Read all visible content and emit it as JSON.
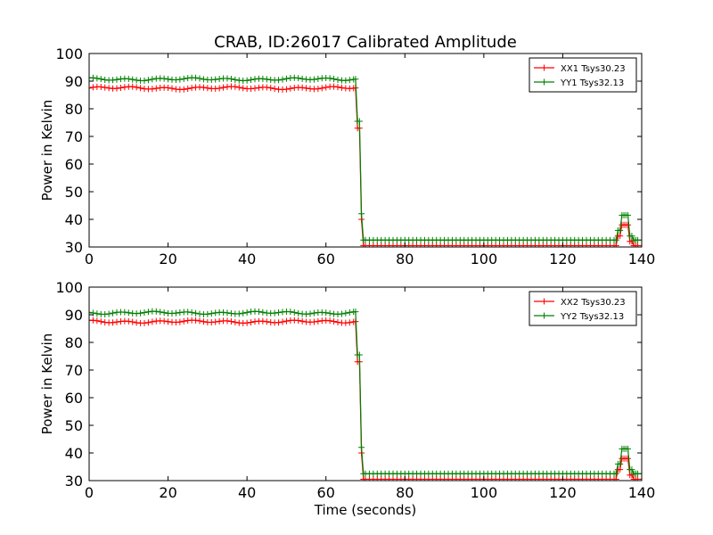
{
  "figure": {
    "title": "CRAB, ID:26017 Calibrated Amplitude"
  },
  "colors": {
    "series_a": "#ff0000",
    "series_b": "#008000",
    "axes": "#000000",
    "background": "#ffffff"
  },
  "chart_data": [
    {
      "type": "line",
      "title": "CRAB, ID:26017 Calibrated Amplitude",
      "xlabel": "",
      "ylabel": "Power in Kelvin",
      "xlim": [
        0,
        140
      ],
      "ylim": [
        30,
        100
      ],
      "xticks": [
        "0",
        "20",
        "40",
        "60",
        "80",
        "100",
        "120",
        "140"
      ],
      "yticks": [
        "30",
        "40",
        "50",
        "60",
        "70",
        "80",
        "90",
        "100"
      ],
      "grid": false,
      "legend_position": "top-right",
      "marker": "+",
      "series": [
        {
          "name": "XX1 Tsys30.23",
          "color": "#ff0000",
          "segments": [
            {
              "x_start": 0,
              "x_end": 68,
              "level": 87.5
            },
            {
              "x_start": 68,
              "x_end": 69,
              "level": 73.0
            },
            {
              "x_start": 69,
              "x_end": 69.5,
              "level": 40.0
            },
            {
              "x_start": 69.5,
              "x_end": 134,
              "level": 30.5
            },
            {
              "x_start": 134,
              "x_end": 135,
              "level": 34.0
            },
            {
              "x_start": 135,
              "x_end": 137,
              "level": 38.0
            },
            {
              "x_start": 137,
              "x_end": 138,
              "level": 32.0
            },
            {
              "x_start": 138,
              "x_end": 140,
              "level": 30.5
            }
          ]
        },
        {
          "name": "YY1 Tsys32.13",
          "color": "#008000",
          "segments": [
            {
              "x_start": 0,
              "x_end": 68,
              "level": 90.7
            },
            {
              "x_start": 68,
              "x_end": 69,
              "level": 75.5
            },
            {
              "x_start": 69,
              "x_end": 69.5,
              "level": 42.0
            },
            {
              "x_start": 69.5,
              "x_end": 134,
              "level": 32.5
            },
            {
              "x_start": 134,
              "x_end": 135,
              "level": 36.0
            },
            {
              "x_start": 135,
              "x_end": 137,
              "level": 41.5
            },
            {
              "x_start": 137,
              "x_end": 138,
              "level": 34.0
            },
            {
              "x_start": 138,
              "x_end": 140,
              "level": 32.5
            }
          ]
        }
      ]
    },
    {
      "type": "line",
      "title": "",
      "xlabel": "Time (seconds)",
      "ylabel": "Power in Kelvin",
      "xlim": [
        0,
        140
      ],
      "ylim": [
        30,
        100
      ],
      "xticks": [
        "0",
        "20",
        "40",
        "60",
        "80",
        "100",
        "120",
        "140"
      ],
      "yticks": [
        "30",
        "40",
        "50",
        "60",
        "70",
        "80",
        "90",
        "100"
      ],
      "grid": false,
      "legend_position": "top-right",
      "marker": "+",
      "series": [
        {
          "name": "XX2 Tsys30.23",
          "color": "#ff0000",
          "segments": [
            {
              "x_start": 0,
              "x_end": 68,
              "level": 87.5
            },
            {
              "x_start": 68,
              "x_end": 69,
              "level": 73.0
            },
            {
              "x_start": 69,
              "x_end": 69.5,
              "level": 40.0
            },
            {
              "x_start": 69.5,
              "x_end": 134,
              "level": 30.5
            },
            {
              "x_start": 134,
              "x_end": 135,
              "level": 34.0
            },
            {
              "x_start": 135,
              "x_end": 137,
              "level": 38.0
            },
            {
              "x_start": 137,
              "x_end": 138,
              "level": 32.0
            },
            {
              "x_start": 138,
              "x_end": 140,
              "level": 30.5
            }
          ]
        },
        {
          "name": "YY2 Tsys32.13",
          "color": "#008000",
          "segments": [
            {
              "x_start": 0,
              "x_end": 68,
              "level": 90.7
            },
            {
              "x_start": 68,
              "x_end": 69,
              "level": 75.5
            },
            {
              "x_start": 69,
              "x_end": 69.5,
              "level": 42.0
            },
            {
              "x_start": 69.5,
              "x_end": 134,
              "level": 32.5
            },
            {
              "x_start": 134,
              "x_end": 135,
              "level": 36.0
            },
            {
              "x_start": 135,
              "x_end": 137,
              "level": 41.5
            },
            {
              "x_start": 137,
              "x_end": 138,
              "level": 34.0
            },
            {
              "x_start": 138,
              "x_end": 140,
              "level": 32.5
            }
          ]
        }
      ]
    }
  ]
}
